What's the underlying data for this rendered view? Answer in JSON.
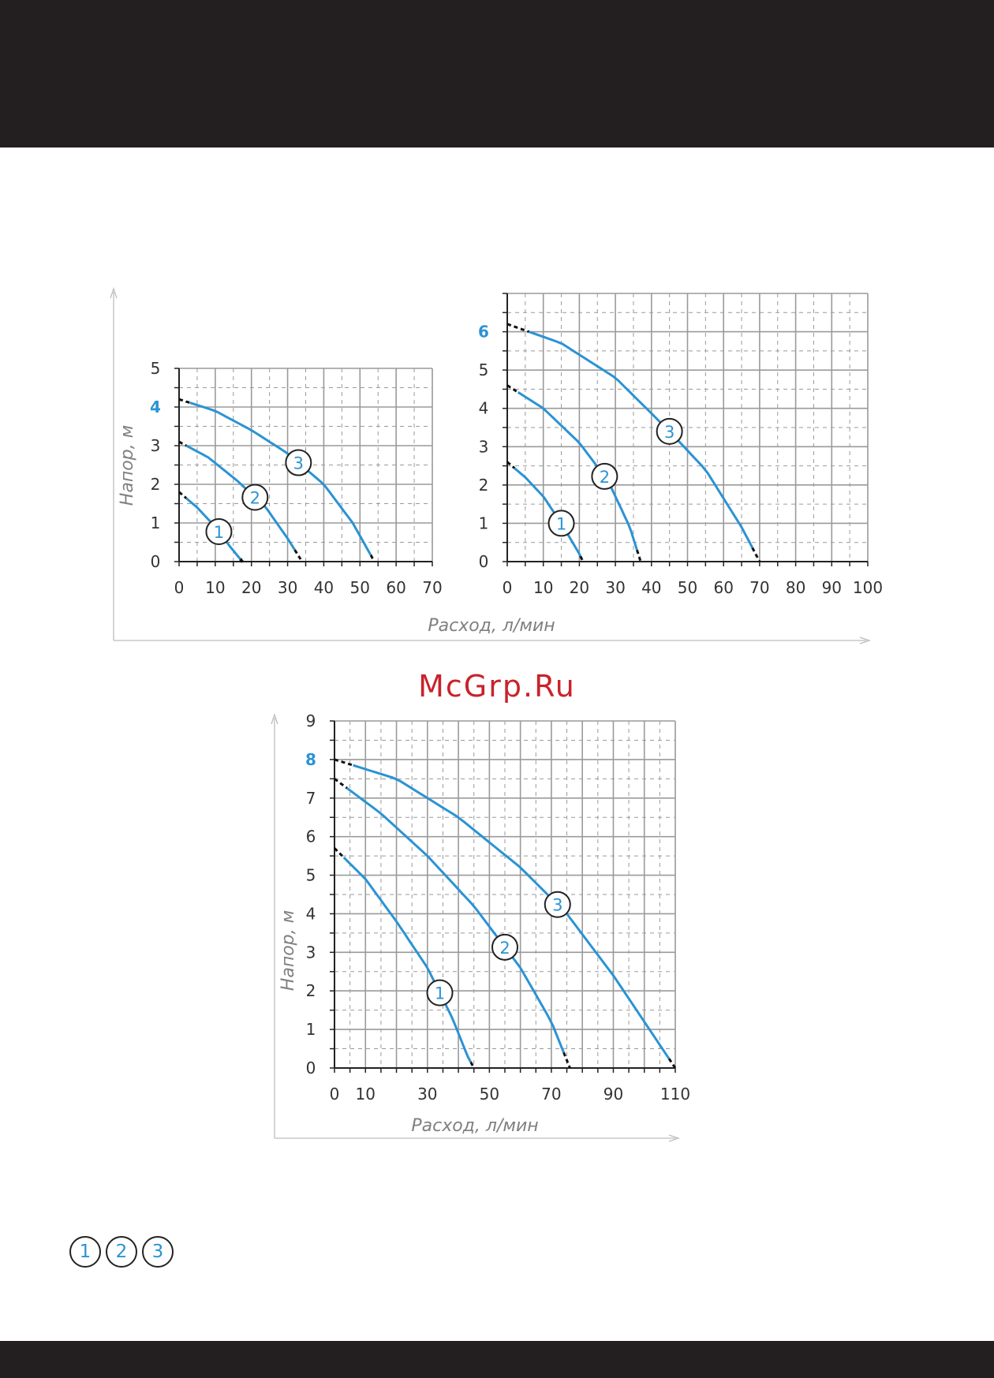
{
  "watermark": "McGrp.Ru",
  "legend": [
    "1",
    "2",
    "3"
  ],
  "colors": {
    "curve": "#2b93d4",
    "highlight": "#2b93d4",
    "grid": "#9a9a9a",
    "axis": "#222222",
    "watermark": "#c8232c"
  },
  "chart_data": [
    {
      "type": "line",
      "ylabel": "Напор, м",
      "xlabel": "Расход, л/мин",
      "xlim": [
        0,
        70
      ],
      "ylim": [
        0,
        5
      ],
      "xticks": [
        "0",
        "10",
        "20",
        "30",
        "40",
        "50",
        "60",
        "70"
      ],
      "yticks": [
        "0",
        "1",
        "2",
        "3",
        "4",
        "5"
      ],
      "highlight_ytick": "4",
      "series": [
        {
          "name": "1",
          "x": [
            0,
            5,
            10,
            14,
            17.5
          ],
          "y": [
            1.8,
            1.4,
            0.9,
            0.4,
            0
          ],
          "solid_range": [
            2,
            17
          ]
        },
        {
          "name": "2",
          "x": [
            0,
            8,
            16,
            24,
            30,
            34
          ],
          "y": [
            3.1,
            2.7,
            2.1,
            1.4,
            0.6,
            0
          ],
          "solid_range": [
            2,
            32
          ]
        },
        {
          "name": "3",
          "x": [
            0,
            10,
            20,
            30,
            40,
            48,
            54
          ],
          "y": [
            4.2,
            3.9,
            3.4,
            2.8,
            2.0,
            1.0,
            0
          ],
          "solid_range": [
            3,
            53
          ]
        }
      ]
    },
    {
      "type": "line",
      "ylabel": "",
      "xlabel": "Расход, л/мин",
      "xlim": [
        0,
        100
      ],
      "ylim": [
        0,
        7
      ],
      "xticks": [
        "0",
        "10",
        "20",
        "30",
        "40",
        "50",
        "60",
        "70",
        "80",
        "90",
        "100"
      ],
      "yticks": [
        "0",
        "1",
        "2",
        "3",
        "4",
        "5",
        "6"
      ],
      "highlight_ytick": "6",
      "series": [
        {
          "name": "1",
          "x": [
            0,
            5,
            10,
            15,
            20,
            21
          ],
          "y": [
            2.6,
            2.2,
            1.7,
            1.0,
            0.2,
            0
          ],
          "solid_range": [
            2,
            20.3
          ]
        },
        {
          "name": "2",
          "x": [
            0,
            10,
            20,
            28,
            34,
            37
          ],
          "y": [
            4.6,
            4.0,
            3.1,
            2.1,
            0.9,
            0
          ],
          "solid_range": [
            3,
            36
          ]
        },
        {
          "name": "3",
          "x": [
            0,
            15,
            30,
            45,
            55,
            65,
            70
          ],
          "y": [
            6.2,
            5.7,
            4.8,
            3.4,
            2.4,
            0.9,
            0
          ],
          "solid_range": [
            6,
            68
          ]
        }
      ]
    },
    {
      "type": "line",
      "ylabel": "Напор, м",
      "xlabel": "Расход, л/мин",
      "xlim": [
        0,
        110
      ],
      "ylim": [
        0,
        9
      ],
      "xticks": [
        "0",
        "10",
        "30",
        "50",
        "70",
        "90",
        "110"
      ],
      "xtick_values": [
        0,
        10,
        30,
        50,
        70,
        90,
        110
      ],
      "yticks": [
        "0",
        "1",
        "2",
        "3",
        "4",
        "5",
        "6",
        "7",
        "8",
        "9"
      ],
      "highlight_ytick": "8",
      "series": [
        {
          "name": "1",
          "x": [
            0,
            10,
            20,
            30,
            38,
            43,
            45
          ],
          "y": [
            5.7,
            4.9,
            3.8,
            2.6,
            1.3,
            0.3,
            0
          ],
          "solid_range": [
            3,
            44
          ]
        },
        {
          "name": "2",
          "x": [
            0,
            15,
            30,
            45,
            60,
            70,
            76
          ],
          "y": [
            7.5,
            6.6,
            5.5,
            4.2,
            2.6,
            1.2,
            0
          ],
          "solid_range": [
            4,
            74
          ]
        },
        {
          "name": "3",
          "x": [
            0,
            20,
            40,
            60,
            75,
            90,
            100,
            110
          ],
          "y": [
            8.0,
            7.5,
            6.5,
            5.2,
            4.0,
            2.4,
            1.2,
            0
          ],
          "solid_range": [
            6,
            108
          ]
        }
      ]
    }
  ]
}
